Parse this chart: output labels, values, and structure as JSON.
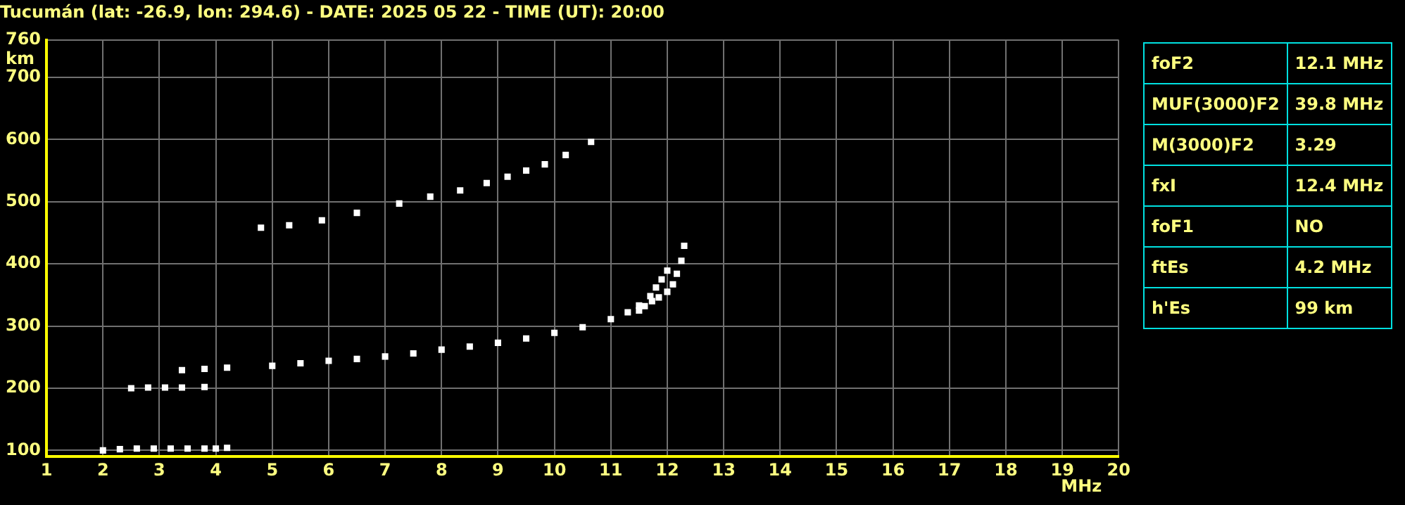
{
  "chart_data": [
    {
      "type": "scatter",
      "title": "Tucumán (lat: -26.9, lon: 294.6) - DATE: 2025 05 22 - TIME (UT): 20:00",
      "xlabel": "MHz",
      "ylabel": "km",
      "xlim": [
        1,
        20
      ],
      "ylim": [
        90,
        760
      ],
      "xticks": [
        1,
        2,
        3,
        4,
        5,
        6,
        7,
        8,
        9,
        10,
        11,
        12,
        13,
        14,
        15,
        16,
        17,
        18,
        19,
        20
      ],
      "yticks": [
        100,
        200,
        300,
        400,
        500,
        600,
        700,
        760
      ],
      "grid": true,
      "marker": "square",
      "series": [
        {
          "color": "#ffffff",
          "x": [
            3.4,
            3.8,
            4.2,
            5.0,
            5.5,
            6.0,
            6.5,
            7.0,
            7.5,
            8.0,
            8.5,
            9.0,
            9.5,
            10.0,
            10.5,
            11.0,
            11.3,
            11.5,
            11.7,
            11.8,
            11.9,
            12.0
          ],
          "values": [
            229,
            231,
            233,
            236,
            240,
            244,
            247,
            251,
            256,
            262,
            267,
            273,
            280,
            289,
            298,
            311,
            322,
            333,
            348,
            362,
            375,
            389
          ]
        },
        {
          "color": "#ffffff",
          "x": [
            11.5,
            11.6,
            11.73,
            11.85,
            12.0,
            12.1,
            12.17,
            12.25,
            12.3
          ],
          "values": [
            325,
            332,
            340,
            346,
            355,
            367,
            384,
            405,
            429
          ]
        },
        {
          "color": "#ffffff",
          "x": [
            2.0,
            2.3,
            2.6,
            2.9,
            3.2,
            3.5,
            3.8,
            4.0,
            4.2
          ],
          "values": [
            100,
            102,
            103,
            103,
            103,
            103,
            103,
            103,
            104
          ]
        },
        {
          "color": "#ffffff",
          "x": [
            2.5,
            2.8,
            3.1,
            3.4,
            3.8
          ],
          "values": [
            200,
            201,
            201,
            201,
            202
          ]
        },
        {
          "color": "#ffffff",
          "x": [
            4.8,
            5.3,
            5.88,
            6.5,
            7.25,
            7.8,
            8.33,
            8.8,
            9.17,
            9.5,
            9.83,
            10.2,
            10.65
          ],
          "values": [
            458,
            462,
            470,
            482,
            497,
            508,
            518,
            530,
            540,
            550,
            560,
            575,
            596
          ]
        }
      ]
    },
    {
      "type": "other",
      "annotations": [
        "foF2",
        "12.1 MHz",
        "MUF(3000)F2",
        "39.8 MHz",
        "M(3000)F2",
        "3.29",
        "fxI",
        "12.4 MHz",
        "foF1",
        "NO",
        "ftEs",
        "4.2 MHz",
        "h'Es",
        "99 km"
      ]
    }
  ]
}
